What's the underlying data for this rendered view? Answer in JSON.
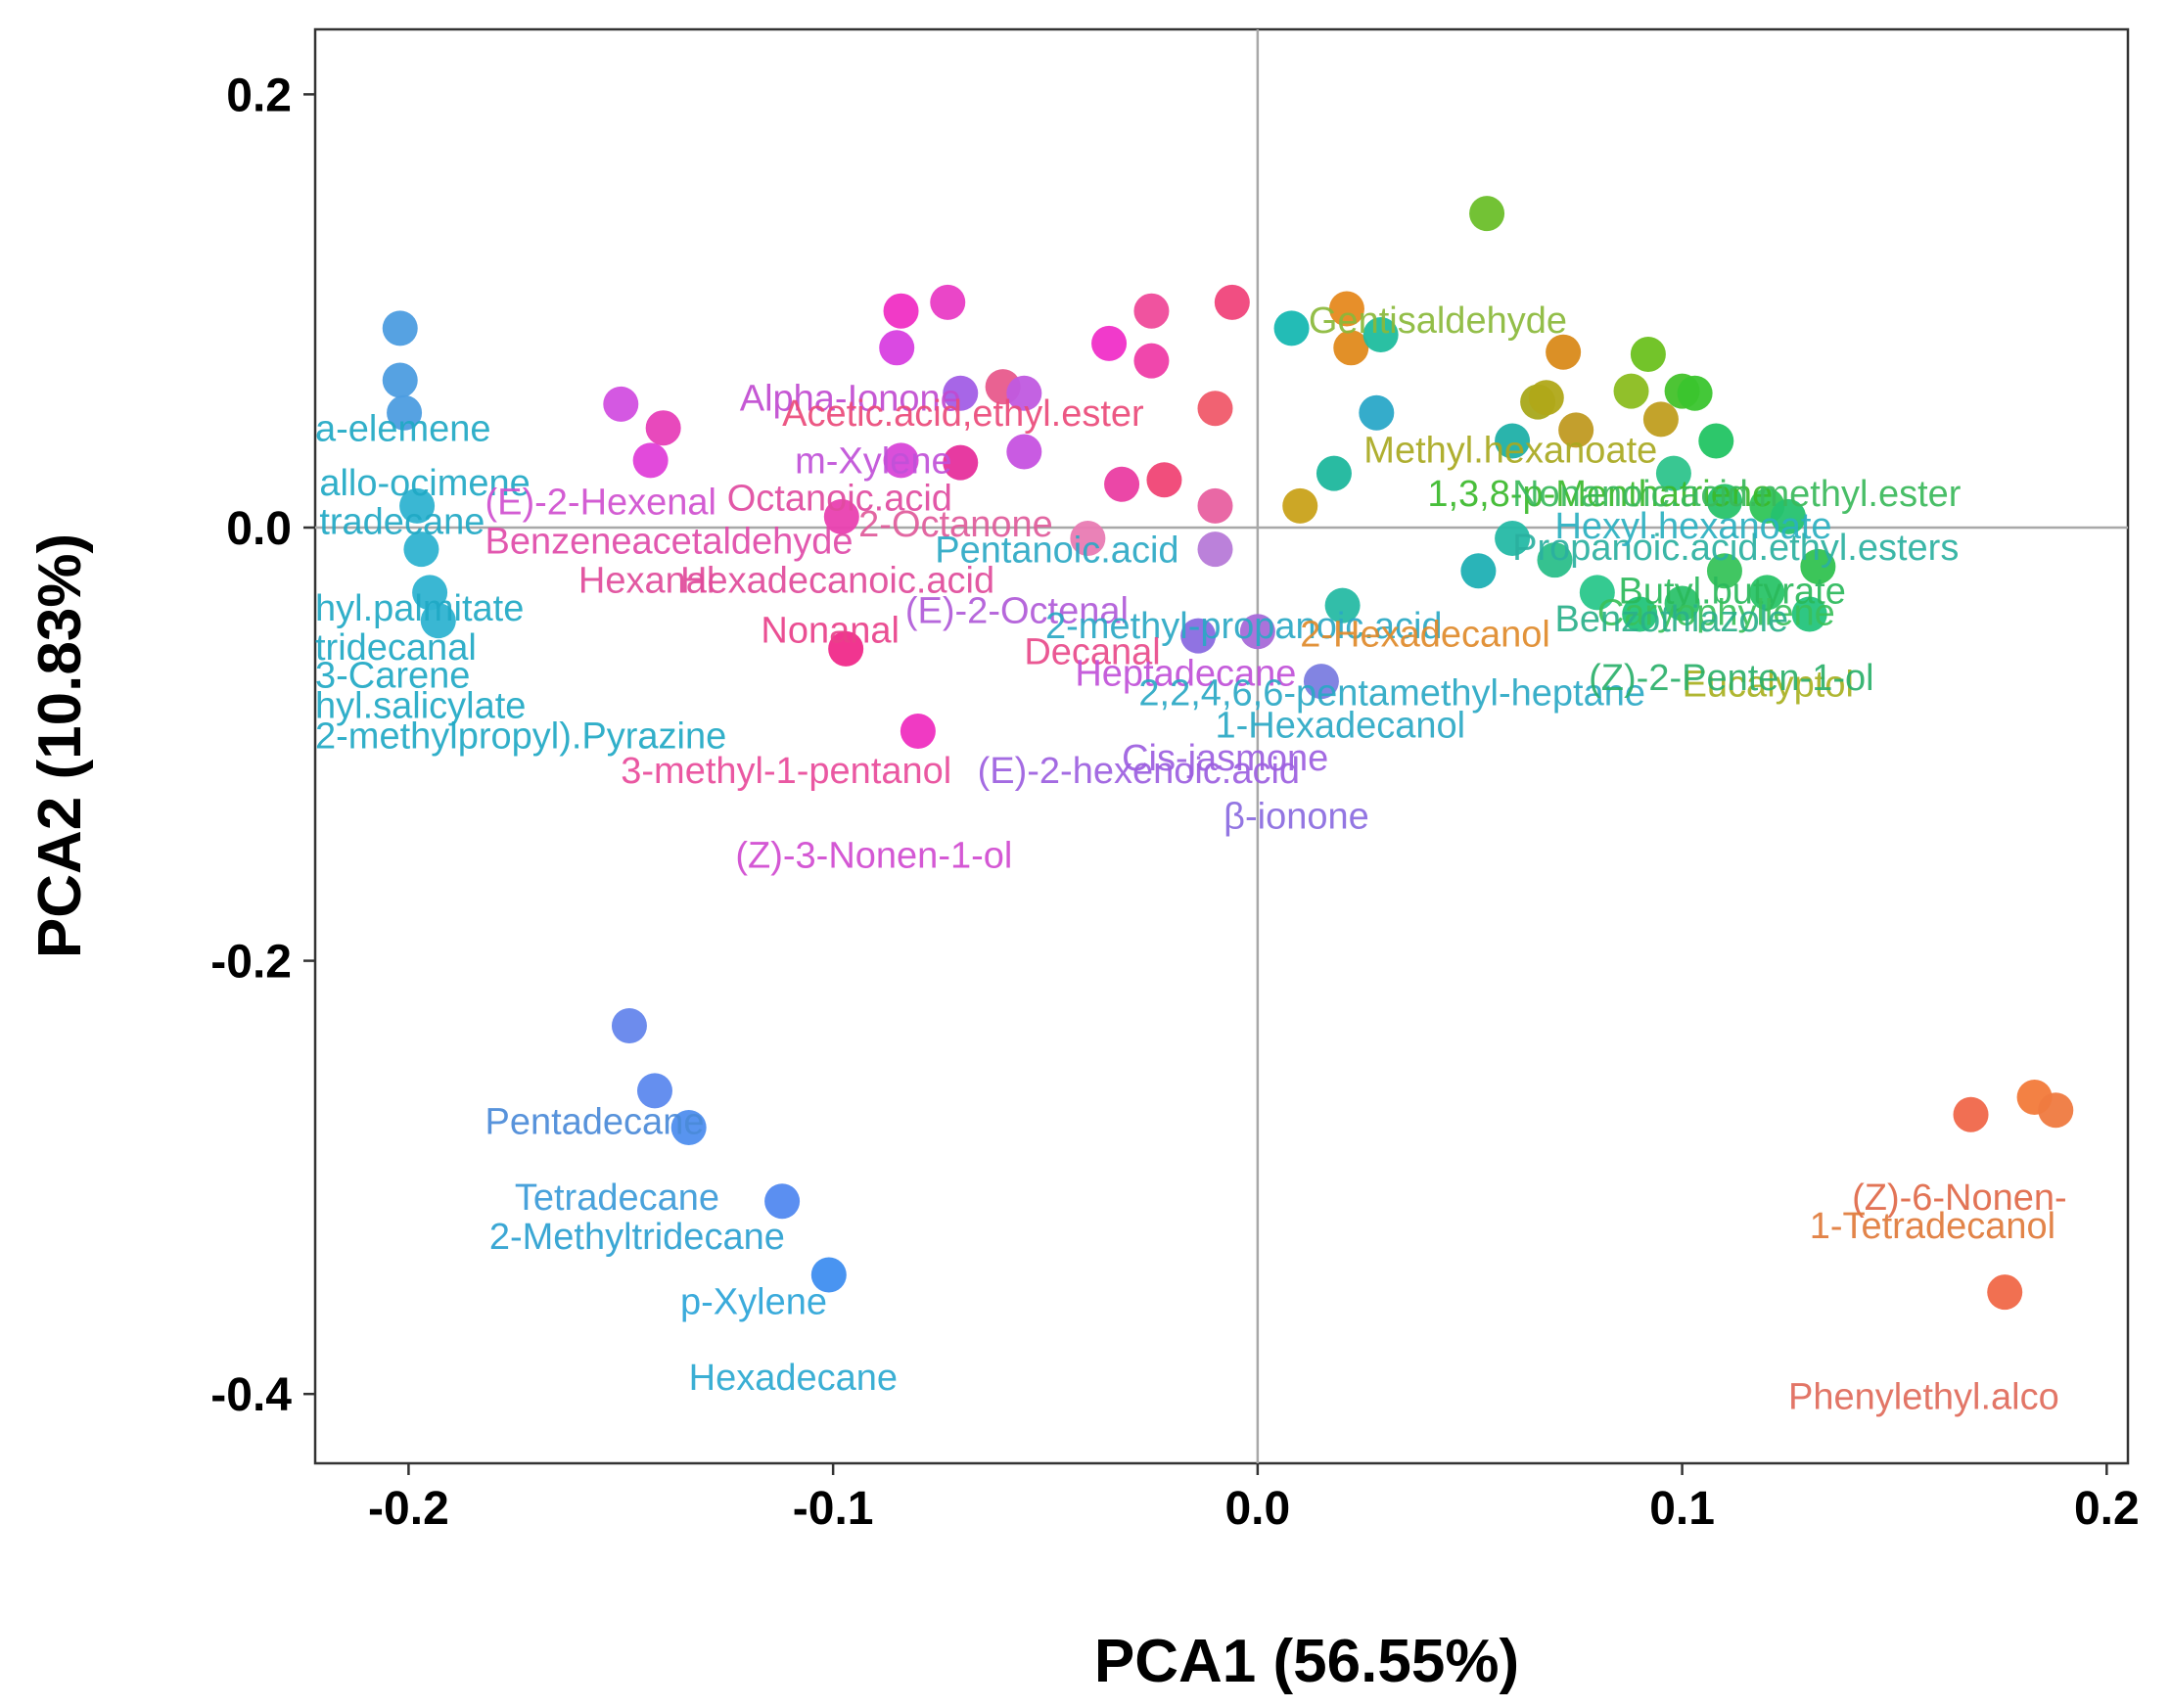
{
  "chart_data": {
    "type": "scatter",
    "title": "",
    "xlabel": "PCA1 (56.55%)",
    "ylabel": "PCA2 (10.83%)",
    "xlim": [
      -0.222,
      0.205
    ],
    "ylim": [
      -0.432,
      0.23
    ],
    "xticks": [
      {
        "value": -0.2,
        "label": "-0.2"
      },
      {
        "value": -0.1,
        "label": "-0.1"
      },
      {
        "value": 0.0,
        "label": "0.0"
      },
      {
        "value": 0.1,
        "label": "0.1"
      },
      {
        "value": 0.2,
        "label": "0.2"
      }
    ],
    "yticks": [
      {
        "value": 0.2,
        "label": "0.2"
      },
      {
        "value": 0.0,
        "label": "0.0"
      },
      {
        "value": -0.2,
        "label": "-0.2"
      },
      {
        "value": -0.4,
        "label": "-0.4"
      }
    ],
    "reference_lines": {
      "x": 0.0,
      "y": 0.0
    },
    "grid": false,
    "legend": "none",
    "points": [
      {
        "x": -0.202,
        "y": 0.092,
        "color": "#4d9de0"
      },
      {
        "x": -0.202,
        "y": 0.068,
        "color": "#4d9de0"
      },
      {
        "x": -0.201,
        "y": 0.053,
        "color": "#4d9de0"
      },
      {
        "x": -0.198,
        "y": 0.01,
        "color": "#2fb3d1"
      },
      {
        "x": -0.197,
        "y": -0.01,
        "color": "#2fb3d1"
      },
      {
        "x": -0.195,
        "y": -0.03,
        "color": "#2fb3d1"
      },
      {
        "x": -0.193,
        "y": -0.043,
        "color": "#2fb3d1"
      },
      {
        "x": -0.15,
        "y": 0.057,
        "color": "#d24fe0"
      },
      {
        "x": -0.14,
        "y": 0.046,
        "color": "#e73fb8"
      },
      {
        "x": -0.143,
        "y": 0.031,
        "color": "#e040d9"
      },
      {
        "x": -0.084,
        "y": 0.1,
        "color": "#f02fc4"
      },
      {
        "x": -0.085,
        "y": 0.083,
        "color": "#d83fe0"
      },
      {
        "x": -0.073,
        "y": 0.104,
        "color": "#e93cc5"
      },
      {
        "x": -0.07,
        "y": 0.062,
        "color": "#a25ee6"
      },
      {
        "x": -0.06,
        "y": 0.065,
        "color": "#e85a8c"
      },
      {
        "x": -0.055,
        "y": 0.062,
        "color": "#c05ae0"
      },
      {
        "x": -0.084,
        "y": 0.031,
        "color": "#d846d8"
      },
      {
        "x": -0.07,
        "y": 0.03,
        "color": "#e62f9c"
      },
      {
        "x": -0.055,
        "y": 0.035,
        "color": "#c652e0"
      },
      {
        "x": -0.098,
        "y": 0.005,
        "color": "#e940b0"
      },
      {
        "x": -0.035,
        "y": 0.085,
        "color": "#f02fc8"
      },
      {
        "x": -0.025,
        "y": 0.1,
        "color": "#ef4a9a"
      },
      {
        "x": -0.025,
        "y": 0.077,
        "color": "#ef3da8"
      },
      {
        "x": -0.006,
        "y": 0.104,
        "color": "#f0447b"
      },
      {
        "x": -0.032,
        "y": 0.02,
        "color": "#ea3da2"
      },
      {
        "x": -0.022,
        "y": 0.022,
        "color": "#f04575"
      },
      {
        "x": -0.01,
        "y": 0.055,
        "color": "#f05a6a"
      },
      {
        "x": -0.01,
        "y": 0.01,
        "color": "#e860a0"
      },
      {
        "x": -0.04,
        "y": -0.005,
        "color": "#e97bb3"
      },
      {
        "x": -0.01,
        "y": -0.01,
        "color": "#b77ad8"
      },
      {
        "x": -0.097,
        "y": -0.056,
        "color": "#f02a8a"
      },
      {
        "x": -0.08,
        "y": -0.094,
        "color": "#ef2fc0"
      },
      {
        "x": -0.014,
        "y": -0.05,
        "color": "#8a6be0"
      },
      {
        "x": 0.0,
        "y": -0.048,
        "color": "#a86ad8"
      },
      {
        "x": 0.015,
        "y": -0.071,
        "color": "#7b7de0"
      },
      {
        "x": 0.008,
        "y": 0.092,
        "color": "#17b8b2"
      },
      {
        "x": 0.021,
        "y": 0.101,
        "color": "#e6891f"
      },
      {
        "x": 0.022,
        "y": 0.083,
        "color": "#e08a1c"
      },
      {
        "x": 0.029,
        "y": 0.089,
        "color": "#1fbd9e"
      },
      {
        "x": 0.028,
        "y": 0.053,
        "color": "#2aa8c8"
      },
      {
        "x": 0.018,
        "y": 0.025,
        "color": "#1db79d"
      },
      {
        "x": 0.01,
        "y": 0.01,
        "color": "#c9a21a"
      },
      {
        "x": 0.054,
        "y": 0.145,
        "color": "#6cbf2a"
      },
      {
        "x": 0.072,
        "y": 0.081,
        "color": "#d98a1a"
      },
      {
        "x": 0.06,
        "y": 0.04,
        "color": "#1fb0a8"
      },
      {
        "x": 0.066,
        "y": 0.058,
        "color": "#a8a81a"
      },
      {
        "x": 0.068,
        "y": 0.06,
        "color": "#b0a818"
      },
      {
        "x": 0.075,
        "y": 0.045,
        "color": "#c09a22"
      },
      {
        "x": 0.088,
        "y": 0.063,
        "color": "#8bbd20"
      },
      {
        "x": 0.092,
        "y": 0.08,
        "color": "#6cc11f"
      },
      {
        "x": 0.095,
        "y": 0.05,
        "color": "#c09e20"
      },
      {
        "x": 0.1,
        "y": 0.063,
        "color": "#43c22a"
      },
      {
        "x": 0.103,
        "y": 0.062,
        "color": "#3ac52e"
      },
      {
        "x": 0.108,
        "y": 0.04,
        "color": "#22c463"
      },
      {
        "x": 0.098,
        "y": 0.025,
        "color": "#2ec48c"
      },
      {
        "x": 0.11,
        "y": 0.012,
        "color": "#28c36a"
      },
      {
        "x": 0.12,
        "y": 0.01,
        "color": "#2fc559"
      },
      {
        "x": 0.125,
        "y": 0.005,
        "color": "#25c26f"
      },
      {
        "x": 0.06,
        "y": -0.005,
        "color": "#25b9a5"
      },
      {
        "x": 0.052,
        "y": -0.02,
        "color": "#1fb0b4"
      },
      {
        "x": 0.07,
        "y": -0.015,
        "color": "#2bbf8a"
      },
      {
        "x": 0.08,
        "y": -0.03,
        "color": "#2ac78b"
      },
      {
        "x": 0.09,
        "y": -0.04,
        "color": "#22c47a"
      },
      {
        "x": 0.1,
        "y": -0.035,
        "color": "#2cc26b"
      },
      {
        "x": 0.11,
        "y": -0.02,
        "color": "#37c35a"
      },
      {
        "x": 0.12,
        "y": -0.03,
        "color": "#2ac468"
      },
      {
        "x": 0.132,
        "y": -0.018,
        "color": "#31c250"
      },
      {
        "x": 0.13,
        "y": -0.04,
        "color": "#24c47c"
      },
      {
        "x": 0.02,
        "y": -0.036,
        "color": "#27bba4"
      },
      {
        "x": 0.168,
        "y": -0.271,
        "color": "#f0674a"
      },
      {
        "x": 0.183,
        "y": -0.263,
        "color": "#f27a3a"
      },
      {
        "x": 0.188,
        "y": -0.269,
        "color": "#ef7a40"
      },
      {
        "x": 0.176,
        "y": -0.353,
        "color": "#f06848"
      },
      {
        "x": -0.148,
        "y": -0.23,
        "color": "#6586ec"
      },
      {
        "x": -0.142,
        "y": -0.26,
        "color": "#5d89ee"
      },
      {
        "x": -0.134,
        "y": -0.277,
        "color": "#4f8eee"
      },
      {
        "x": -0.112,
        "y": -0.311,
        "color": "#5289f0"
      },
      {
        "x": -0.101,
        "y": -0.345,
        "color": "#3f8ef0"
      }
    ],
    "labels": [
      {
        "text": "a-elemene",
        "x": -0.222,
        "y": 0.04,
        "anchor": "start",
        "color": "#1fa8c4"
      },
      {
        "text": "allo-ocimene",
        "x": -0.221,
        "y": 0.015,
        "anchor": "start",
        "color": "#1fa8c4"
      },
      {
        "text": "tradecane",
        "x": -0.221,
        "y": -0.003,
        "anchor": "start",
        "color": "#1fa8c4"
      },
      {
        "text": "(E)-2-Hexenal",
        "x": -0.182,
        "y": 0.006,
        "anchor": "start",
        "color": "#cf4fcf"
      },
      {
        "text": "Benzeneacetaldehyde",
        "x": -0.182,
        "y": -0.012,
        "anchor": "start",
        "color": "#e04aa8"
      },
      {
        "text": "hyl.palmitate",
        "x": -0.222,
        "y": -0.043,
        "anchor": "start",
        "color": "#1fa8c4"
      },
      {
        "text": "tridecanal",
        "x": -0.222,
        "y": -0.061,
        "anchor": "start",
        "color": "#1fa8c4"
      },
      {
        "text": "3-Carene",
        "x": -0.222,
        "y": -0.074,
        "anchor": "start",
        "color": "#1fa8c4"
      },
      {
        "text": "hyl.salicylate",
        "x": -0.222,
        "y": -0.088,
        "anchor": "start",
        "color": "#1fa8c4"
      },
      {
        "text": "2-methylpropyl).Pyrazine",
        "x": -0.222,
        "y": -0.102,
        "anchor": "start",
        "color": "#1fa8c4"
      },
      {
        "text": "Hexanal",
        "x": -0.16,
        "y": -0.03,
        "anchor": "start",
        "color": "#e04a9a"
      },
      {
        "text": "Nonanal",
        "x": -0.117,
        "y": -0.053,
        "anchor": "start",
        "color": "#e8408a"
      },
      {
        "text": "3-methyl-1-pentanol",
        "x": -0.15,
        "y": -0.118,
        "anchor": "start",
        "color": "#e84a9a"
      },
      {
        "text": "(Z)-3-Nonen-1-ol",
        "x": -0.123,
        "y": -0.157,
        "anchor": "start",
        "color": "#d04ad0"
      },
      {
        "text": "Alpha-Ionone",
        "x": -0.122,
        "y": 0.054,
        "anchor": "start",
        "color": "#c04ad0"
      },
      {
        "text": "Acetic.acid,ethyl.ester",
        "x": -0.112,
        "y": 0.047,
        "anchor": "start",
        "color": "#ea4a7a"
      },
      {
        "text": "m-Xylene",
        "x": -0.109,
        "y": 0.025,
        "anchor": "start",
        "color": "#c050d8"
      },
      {
        "text": "Octanoic.acid",
        "x": -0.125,
        "y": 0.008,
        "anchor": "start",
        "color": "#e04aa0"
      },
      {
        "text": "2-Octanone",
        "x": -0.094,
        "y": -0.004,
        "anchor": "start",
        "color": "#e05a9a"
      },
      {
        "text": "Hexadecanoic.acid",
        "x": -0.136,
        "y": -0.03,
        "anchor": "start",
        "color": "#e04a9a"
      },
      {
        "text": "(E)-2-Octenal",
        "x": -0.083,
        "y": -0.044,
        "anchor": "start",
        "color": "#b05ad8"
      },
      {
        "text": "Pentanoic.acid",
        "x": -0.076,
        "y": -0.016,
        "anchor": "start",
        "color": "#2aa8c4"
      },
      {
        "text": "2-methyl-propanoic.acid",
        "x": -0.05,
        "y": -0.051,
        "anchor": "start",
        "color": "#2aa8c4"
      },
      {
        "text": "Decanal",
        "x": -0.055,
        "y": -0.063,
        "anchor": "start",
        "color": "#e84a8a"
      },
      {
        "text": "Heptadecane",
        "x": -0.043,
        "y": -0.073,
        "anchor": "start",
        "color": "#c050d8"
      },
      {
        "text": "(E)-2-hexenoic.acid",
        "x": -0.066,
        "y": -0.118,
        "anchor": "start",
        "color": "#9c5ee0"
      },
      {
        "text": "Cis-jasmone",
        "x": -0.032,
        "y": -0.112,
        "anchor": "start",
        "color": "#9c5ee0"
      },
      {
        "text": "β-ionone",
        "x": -0.008,
        "y": -0.139,
        "anchor": "start",
        "color": "#8a6ae0"
      },
      {
        "text": "1-Hexadecanol",
        "x": -0.01,
        "y": -0.097,
        "anchor": "start",
        "color": "#2aa8c4"
      },
      {
        "text": "2,2,4,6,6-pentamethyl-heptane",
        "x": -0.028,
        "y": -0.082,
        "anchor": "start",
        "color": "#2aa8c4"
      },
      {
        "text": "2-Hexadecanol",
        "x": 0.01,
        "y": -0.055,
        "anchor": "start",
        "color": "#e08a2a"
      },
      {
        "text": "Gentisaldehyde",
        "x": 0.012,
        "y": 0.09,
        "anchor": "start",
        "color": "#8ab83a"
      },
      {
        "text": "Eucalyptol",
        "x": 0.1,
        "y": -0.078,
        "anchor": "start",
        "color": "#a8b020"
      },
      {
        "text": "(Z)-2-Penten-1-ol",
        "x": 0.078,
        "y": -0.075,
        "anchor": "start",
        "color": "#2ab06a"
      },
      {
        "text": "1,3,8-p-Menthatriene",
        "x": 0.04,
        "y": 0.01,
        "anchor": "start",
        "color": "#3ab82a"
      },
      {
        "text": "Methyl.hexanoate",
        "x": 0.025,
        "y": 0.03,
        "anchor": "start",
        "color": "#a8a820"
      },
      {
        "text": "Nonanoic.acid.methyl.ester",
        "x": 0.06,
        "y": 0.01,
        "anchor": "start",
        "color": "#3ab85a"
      },
      {
        "text": "Propanoic.acid.ethyl.esters",
        "x": 0.06,
        "y": -0.015,
        "anchor": "start",
        "color": "#2ab0a0"
      },
      {
        "text": "Butyl.butyrate",
        "x": 0.085,
        "y": -0.035,
        "anchor": "start",
        "color": "#2ab85a"
      },
      {
        "text": "Caryophyllene",
        "x": 0.08,
        "y": -0.045,
        "anchor": "start",
        "color": "#3ac05a"
      },
      {
        "text": "Benzothiazole",
        "x": 0.07,
        "y": -0.048,
        "anchor": "start",
        "color": "#2ab08a"
      },
      {
        "text": "Hexyl.hexanoate",
        "x": 0.07,
        "y": -0.005,
        "anchor": "start",
        "color": "#2ab0c0"
      },
      {
        "text": "Pentadecane",
        "x": -0.182,
        "y": -0.28,
        "anchor": "start",
        "color": "#4a8ad8"
      },
      {
        "text": "Tetradecane",
        "x": -0.175,
        "y": -0.315,
        "anchor": "start",
        "color": "#3a9ad8"
      },
      {
        "text": "2-Methyltridecane",
        "x": -0.181,
        "y": -0.333,
        "anchor": "start",
        "color": "#2aa0d0"
      },
      {
        "text": "p-Xylene",
        "x": -0.136,
        "y": -0.363,
        "anchor": "start",
        "color": "#2aa4d8"
      },
      {
        "text": "Hexadecane",
        "x": -0.134,
        "y": -0.398,
        "anchor": "start",
        "color": "#2aa8d0"
      },
      {
        "text": "(Z)-6-Nonen-",
        "x": 0.14,
        "y": -0.315,
        "anchor": "start",
        "color": "#e06848"
      },
      {
        "text": "1-Tetradecanol",
        "x": 0.13,
        "y": -0.328,
        "anchor": "start",
        "color": "#e07a3a"
      },
      {
        "text": "Phenylethyl.alco",
        "x": 0.125,
        "y": -0.407,
        "anchor": "start",
        "color": "#e06a5a"
      }
    ]
  }
}
